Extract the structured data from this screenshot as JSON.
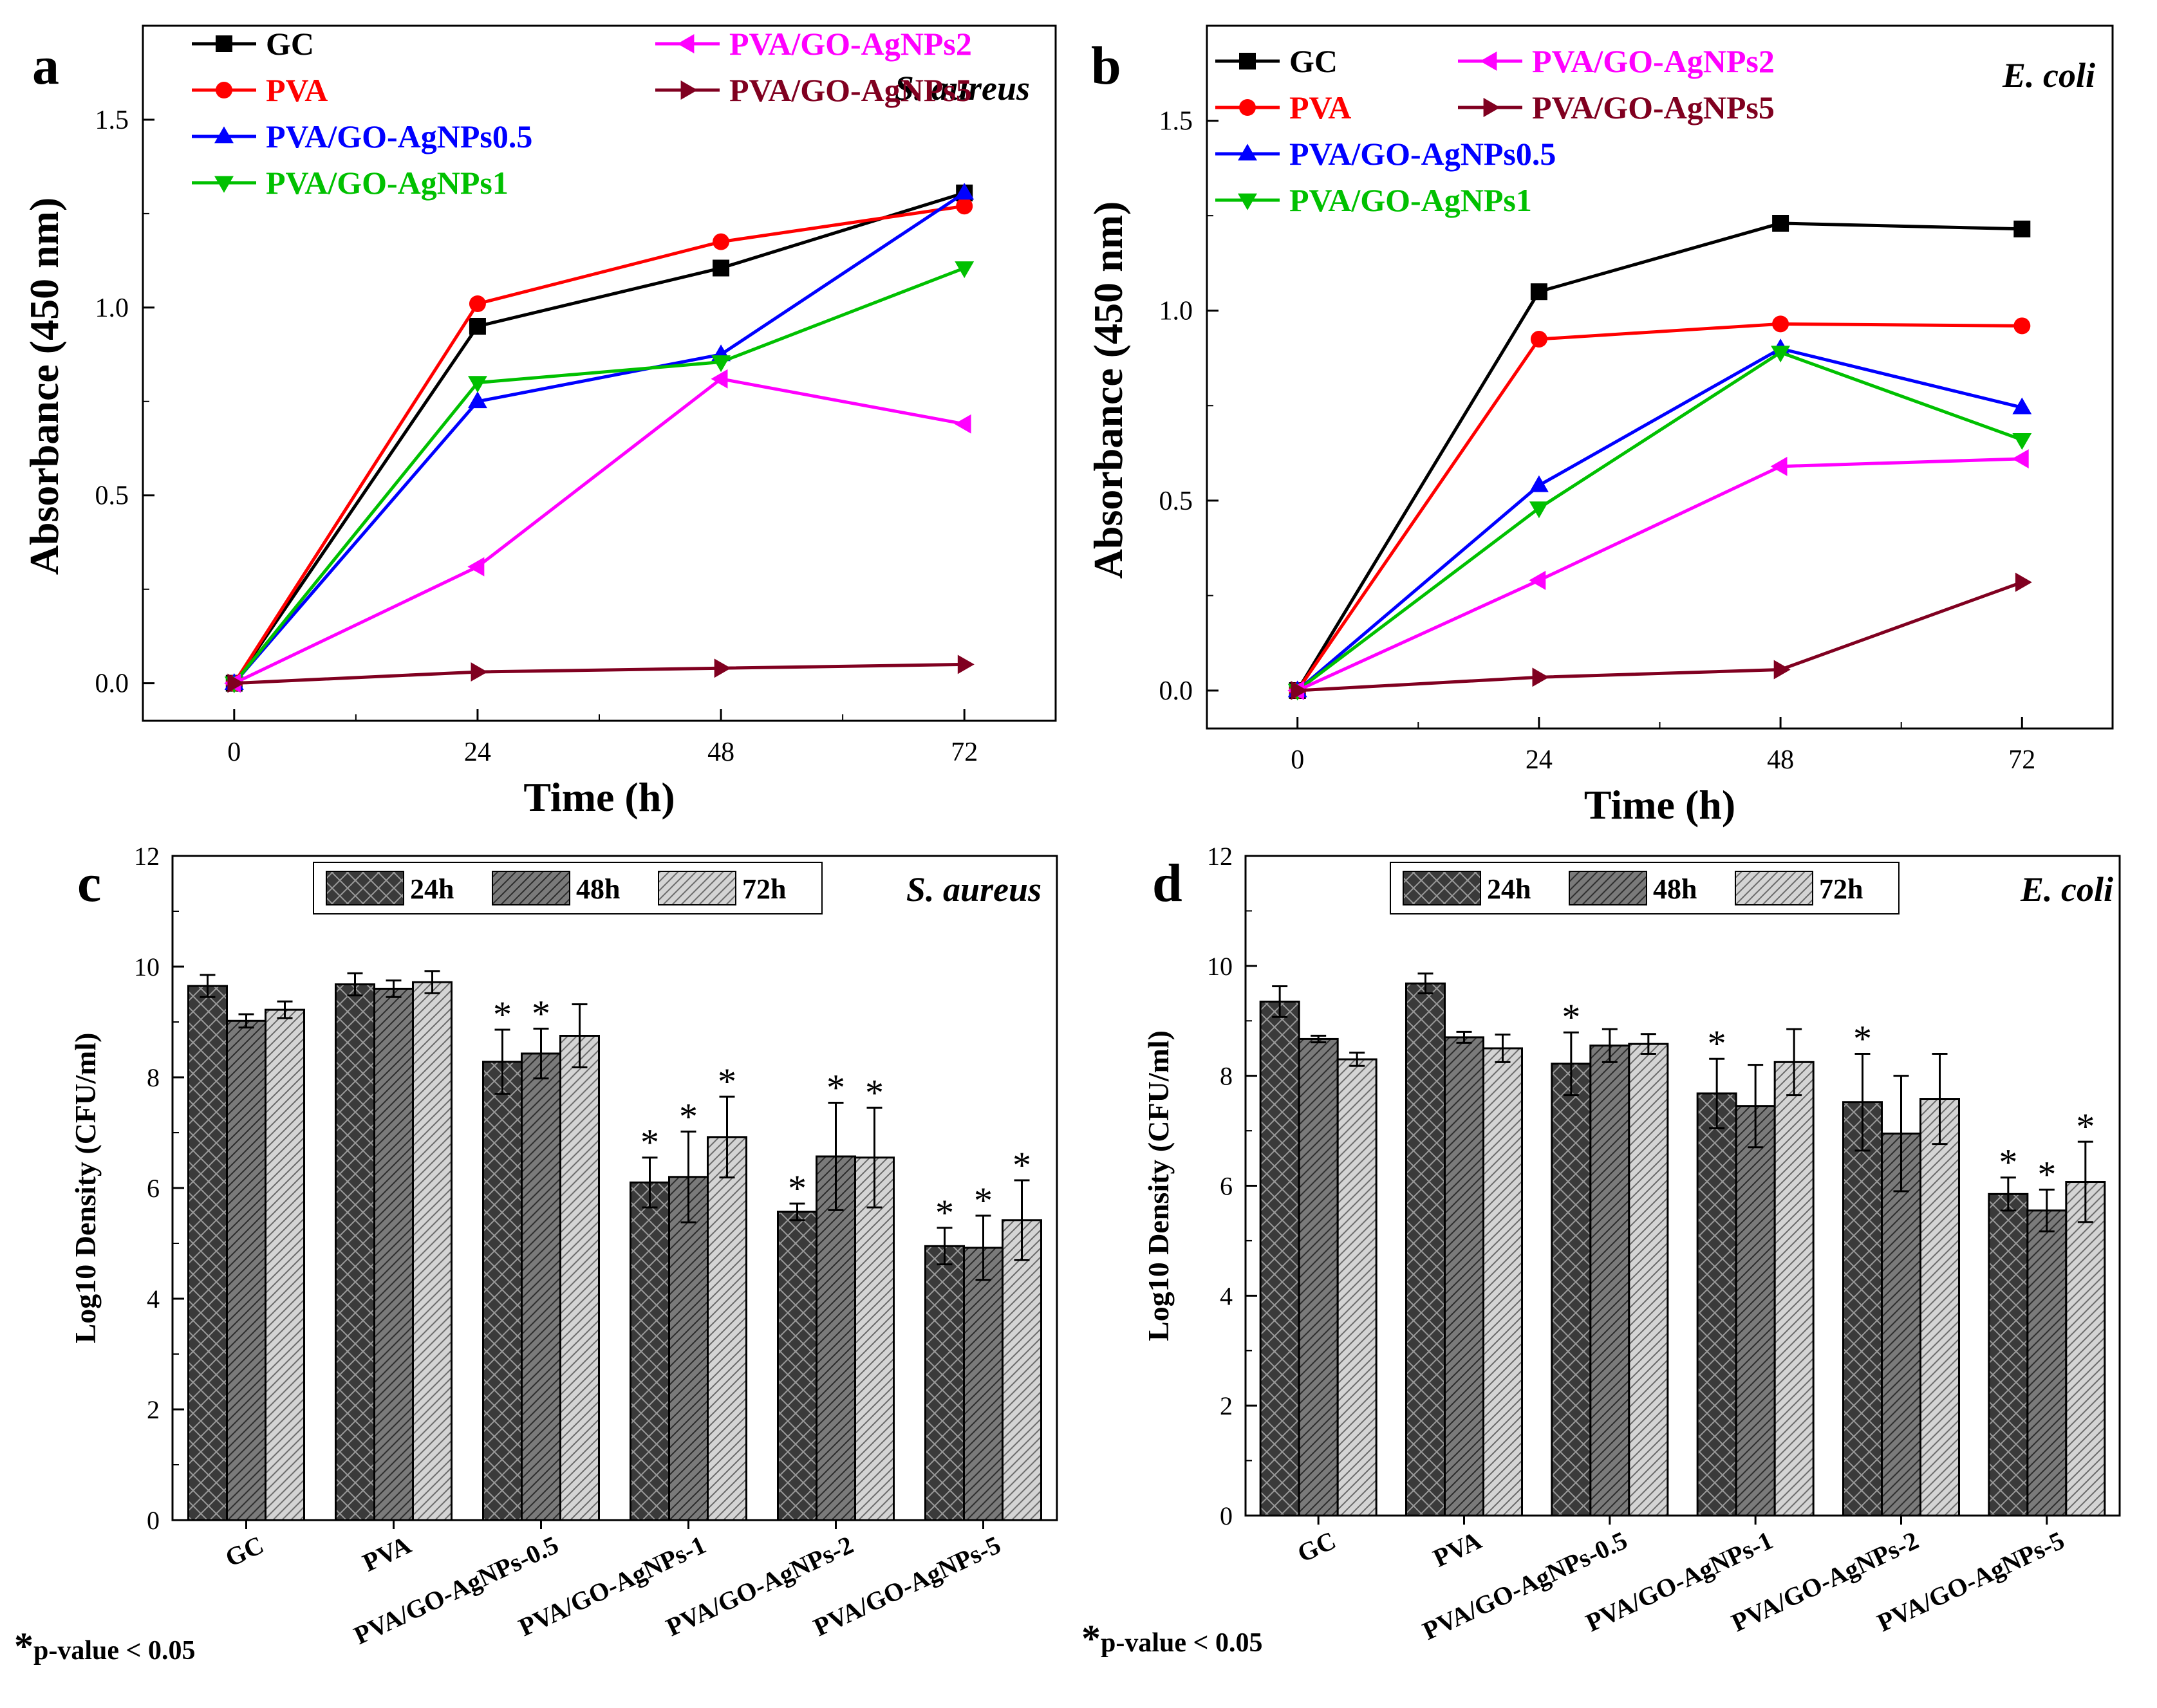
{
  "panels": {
    "a": {
      "letter": "a",
      "organism": "S. aureus"
    },
    "b": {
      "letter": "b",
      "organism": "E. coli"
    },
    "c": {
      "letter": "c",
      "organism": "S. aureus"
    },
    "d": {
      "letter": "d",
      "organism": "E. coli"
    }
  },
  "footnote": {
    "star": "*",
    "text": "p-value < 0.05"
  },
  "colors": {
    "GC": "#000000",
    "PVA": "#ff0000",
    "PVA/GO-AgNPs0.5": "#0000ff",
    "PVA/GO-AgNPs1": "#00c000",
    "PVA/GO-AgNPs2": "#ff00ff",
    "PVA/GO-AgNPs5": "#800020",
    "bar24": "#3a3a3a",
    "bar48": "#7a7a7a",
    "bar72": "#c8c8c8"
  },
  "chart_data": [
    {
      "panel": "a",
      "type": "line",
      "title": "S. aureus",
      "xlabel": "Time (h)",
      "ylabel": "Absorbance (450 nm)",
      "x": [
        0,
        24,
        48,
        72
      ],
      "xlim": [
        -9,
        81
      ],
      "ylim": [
        -0.1,
        1.75
      ],
      "xticks": [
        "0",
        "24",
        "48",
        "72"
      ],
      "yticks": [
        "0.0",
        "0.5",
        "1.0",
        "1.5"
      ],
      "series": [
        {
          "name": "GC",
          "marker": "square",
          "values": [
            0.0,
            0.95,
            1.105,
            1.305
          ]
        },
        {
          "name": "PVA",
          "marker": "circle",
          "values": [
            0.0,
            1.01,
            1.175,
            1.27
          ]
        },
        {
          "name": "PVA/GO-AgNPs0.5",
          "marker": "triangle-up",
          "values": [
            0.0,
            0.75,
            0.875,
            1.305
          ]
        },
        {
          "name": "PVA/GO-AgNPs1",
          "marker": "triangle-down",
          "values": [
            0.0,
            0.8,
            0.855,
            1.105
          ]
        },
        {
          "name": "PVA/GO-AgNPs2",
          "marker": "triangle-left",
          "values": [
            0.0,
            0.31,
            0.81,
            0.69
          ]
        },
        {
          "name": "PVA/GO-AgNPs5",
          "marker": "triangle-right",
          "values": [
            0.0,
            0.03,
            0.04,
            0.05
          ]
        }
      ]
    },
    {
      "panel": "b",
      "type": "line",
      "title": "E. coli",
      "xlabel": "Time (h)",
      "ylabel": "Absorbance (450 nm)",
      "x": [
        0,
        24,
        48,
        72
      ],
      "xlim": [
        -9,
        81
      ],
      "ylim": [
        -0.1,
        1.75
      ],
      "xticks": [
        "0",
        "24",
        "48",
        "72"
      ],
      "yticks": [
        "0.0",
        "0.5",
        "1.0",
        "1.5"
      ],
      "series": [
        {
          "name": "GC",
          "marker": "square",
          "values": [
            0.0,
            1.05,
            1.23,
            1.215
          ]
        },
        {
          "name": "PVA",
          "marker": "circle",
          "values": [
            0.0,
            0.925,
            0.965,
            0.96
          ]
        },
        {
          "name": "PVA/GO-AgNPs0.5",
          "marker": "triangle-up",
          "values": [
            0.0,
            0.54,
            0.9,
            0.745
          ]
        },
        {
          "name": "PVA/GO-AgNPs1",
          "marker": "triangle-down",
          "values": [
            0.0,
            0.48,
            0.89,
            0.66
          ]
        },
        {
          "name": "PVA/GO-AgNPs2",
          "marker": "triangle-left",
          "values": [
            0.0,
            0.29,
            0.59,
            0.61
          ]
        },
        {
          "name": "PVA/GO-AgNPs5",
          "marker": "triangle-right",
          "values": [
            0.0,
            0.035,
            0.055,
            0.285
          ]
        }
      ]
    },
    {
      "panel": "c",
      "type": "bar",
      "title": "S. aureus",
      "xlabel": "",
      "ylabel": "Log10 Density (CFU/ml)",
      "ylim": [
        0,
        12
      ],
      "yticks": [
        "0",
        "2",
        "4",
        "6",
        "8",
        "10",
        "12"
      ],
      "categories": [
        "GC",
        "PVA",
        "PVA/GO-AgNPs-0.5",
        "PVA/GO-AgNPs-1",
        "PVA/GO-AgNPs-2",
        "PVA/GO-AgNPs-5"
      ],
      "series": [
        {
          "name": "24h",
          "values": [
            9.65,
            9.68,
            8.28,
            6.1,
            5.57,
            4.95
          ],
          "errors": [
            0.2,
            0.2,
            0.58,
            0.45,
            0.15,
            0.33
          ],
          "significant": [
            false,
            false,
            true,
            true,
            true,
            true
          ]
        },
        {
          "name": "48h",
          "values": [
            9.02,
            9.6,
            8.43,
            6.2,
            6.57,
            4.92
          ],
          "errors": [
            0.12,
            0.15,
            0.45,
            0.82,
            0.97,
            0.58
          ],
          "significant": [
            false,
            false,
            true,
            true,
            true,
            true
          ]
        },
        {
          "name": "72h",
          "values": [
            9.22,
            9.72,
            8.75,
            6.92,
            6.55,
            5.42
          ],
          "errors": [
            0.15,
            0.2,
            0.57,
            0.73,
            0.9,
            0.72
          ],
          "significant": [
            false,
            false,
            false,
            true,
            true,
            true
          ]
        }
      ]
    },
    {
      "panel": "d",
      "type": "bar",
      "title": "E. coli",
      "xlabel": "",
      "ylabel": "Log10 Density (CFU/ml)",
      "ylim": [
        0,
        12
      ],
      "yticks": [
        "0",
        "2",
        "4",
        "6",
        "8",
        "10",
        "12"
      ],
      "categories": [
        "GC",
        "PVA",
        "PVA/GO-AgNPs-0.5",
        "PVA/GO-AgNPs-1",
        "PVA/GO-AgNPs-2",
        "PVA/GO-AgNPs-5"
      ],
      "series": [
        {
          "name": "24h",
          "values": [
            9.35,
            9.68,
            8.22,
            7.68,
            7.52,
            5.85
          ],
          "errors": [
            0.28,
            0.18,
            0.57,
            0.63,
            0.88,
            0.3
          ],
          "significant": [
            false,
            false,
            true,
            true,
            true,
            true
          ]
        },
        {
          "name": "48h",
          "values": [
            8.67,
            8.7,
            8.55,
            7.45,
            6.95,
            5.55
          ],
          "errors": [
            0.06,
            0.1,
            0.3,
            0.75,
            1.05,
            0.38
          ],
          "significant": [
            false,
            false,
            false,
            false,
            false,
            true
          ]
        },
        {
          "name": "72h",
          "values": [
            8.3,
            8.5,
            8.58,
            8.25,
            7.58,
            6.07
          ],
          "errors": [
            0.12,
            0.25,
            0.18,
            0.6,
            0.82,
            0.73
          ],
          "significant": [
            false,
            false,
            false,
            false,
            false,
            true
          ]
        }
      ]
    }
  ]
}
